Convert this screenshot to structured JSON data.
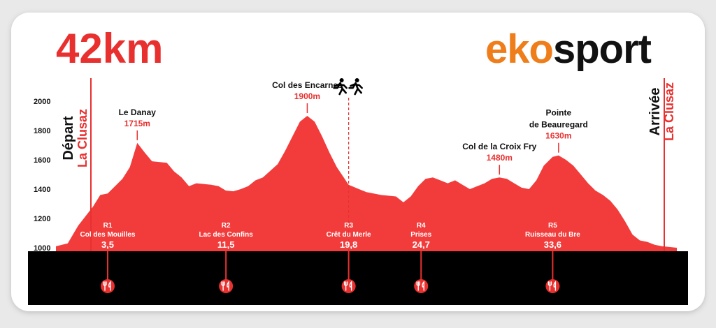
{
  "header": {
    "distance_title": "42km",
    "brand": {
      "part1": "eko",
      "part2": "sport"
    }
  },
  "colors": {
    "profile_red": "#f23c3c",
    "accent_red": "#e8302f",
    "track_black": "#000000",
    "brand_orange": "#ee7d1a",
    "brand_green": "#8ab83a",
    "text_dark": "#111111"
  },
  "start": {
    "label": "Départ",
    "place": "La Clusaz"
  },
  "finish": {
    "label": "Arrivée",
    "place": "La Clusaz"
  },
  "relay_marker": {
    "icon": "runners-icon"
  },
  "chart_data": {
    "type": "area",
    "title": "",
    "xlabel": "",
    "ylabel": "",
    "xlim": [
      0,
      42
    ],
    "ylim": [
      1000,
      2000
    ],
    "y_ticks": [
      "1000",
      "1200",
      "1400",
      "1600",
      "1800",
      "2000"
    ],
    "x_ticks": [
      "0",
      "10",
      "20",
      "30",
      "40",
      "42"
    ],
    "profile": {
      "x": [
        0,
        0.8,
        1.5,
        2.5,
        3.0,
        3.5,
        4.0,
        4.5,
        5.0,
        5.3,
        5.5,
        6.0,
        6.5,
        7.5,
        8.0,
        8.5,
        9.0,
        9.5,
        10.5,
        11.0,
        11.5,
        12.0,
        12.5,
        13.0,
        13.5,
        14.0,
        15.0,
        15.5,
        16.0,
        16.5,
        17.0,
        17.5,
        18.0,
        18.5,
        19.0,
        19.8,
        20.5,
        21.0,
        22.0,
        23.0,
        23.5,
        24.0,
        24.5,
        25.0,
        25.5,
        26.0,
        26.5,
        27.0,
        27.5,
        28.0,
        28.5,
        29.0,
        29.5,
        30.0,
        30.5,
        31.0,
        31.5,
        32.0,
        32.5,
        33.0,
        33.6,
        34.0,
        34.5,
        35.0,
        35.5,
        36.0,
        36.5,
        37.0,
        37.5,
        38.0,
        38.5,
        39.0,
        39.5,
        40.0,
        40.5,
        41.0,
        41.5,
        42.0
      ],
      "y": [
        1010,
        1030,
        1150,
        1280,
        1360,
        1370,
        1420,
        1470,
        1550,
        1650,
        1715,
        1650,
        1590,
        1580,
        1520,
        1480,
        1420,
        1440,
        1430,
        1420,
        1390,
        1385,
        1400,
        1420,
        1460,
        1480,
        1570,
        1660,
        1760,
        1860,
        1900,
        1860,
        1760,
        1650,
        1550,
        1430,
        1400,
        1380,
        1360,
        1350,
        1310,
        1350,
        1420,
        1470,
        1480,
        1460,
        1440,
        1460,
        1430,
        1400,
        1420,
        1440,
        1470,
        1480,
        1470,
        1440,
        1410,
        1400,
        1460,
        1560,
        1620,
        1630,
        1600,
        1560,
        1500,
        1440,
        1390,
        1360,
        1320,
        1260,
        1180,
        1090,
        1050,
        1040,
        1020,
        1010,
        1005,
        1000
      ]
    },
    "peaks": [
      {
        "name": "Le Danay",
        "altitude": "1715m",
        "x": 5.5,
        "y": 1715
      },
      {
        "name": "Col des Encarnes",
        "altitude": "1900m",
        "x": 17.0,
        "y": 1900
      },
      {
        "name": "Col de la Croix Fry",
        "altitude": "1480m",
        "x": 30.0,
        "y": 1480
      },
      {
        "name": "Pointe\nde Beauregard",
        "altitude": "1630m",
        "x": 34.0,
        "y": 1630
      }
    ],
    "refreshments": [
      {
        "code": "R1",
        "name": "Col des Mouilles",
        "km": 3.5,
        "km_label": "3,5"
      },
      {
        "code": "R2",
        "name": "Lac des Confins",
        "km": 11.5,
        "km_label": "11,5"
      },
      {
        "code": "R3",
        "name": "Crêt du Merle",
        "km": 19.8,
        "km_label": "19,8"
      },
      {
        "code": "R4",
        "name": "Prises",
        "km": 24.7,
        "km_label": "24,7"
      },
      {
        "code": "R5",
        "name": "Ruisseau du Bre",
        "km": 33.6,
        "km_label": "33,6"
      }
    ],
    "relay_km": 19.8
  }
}
